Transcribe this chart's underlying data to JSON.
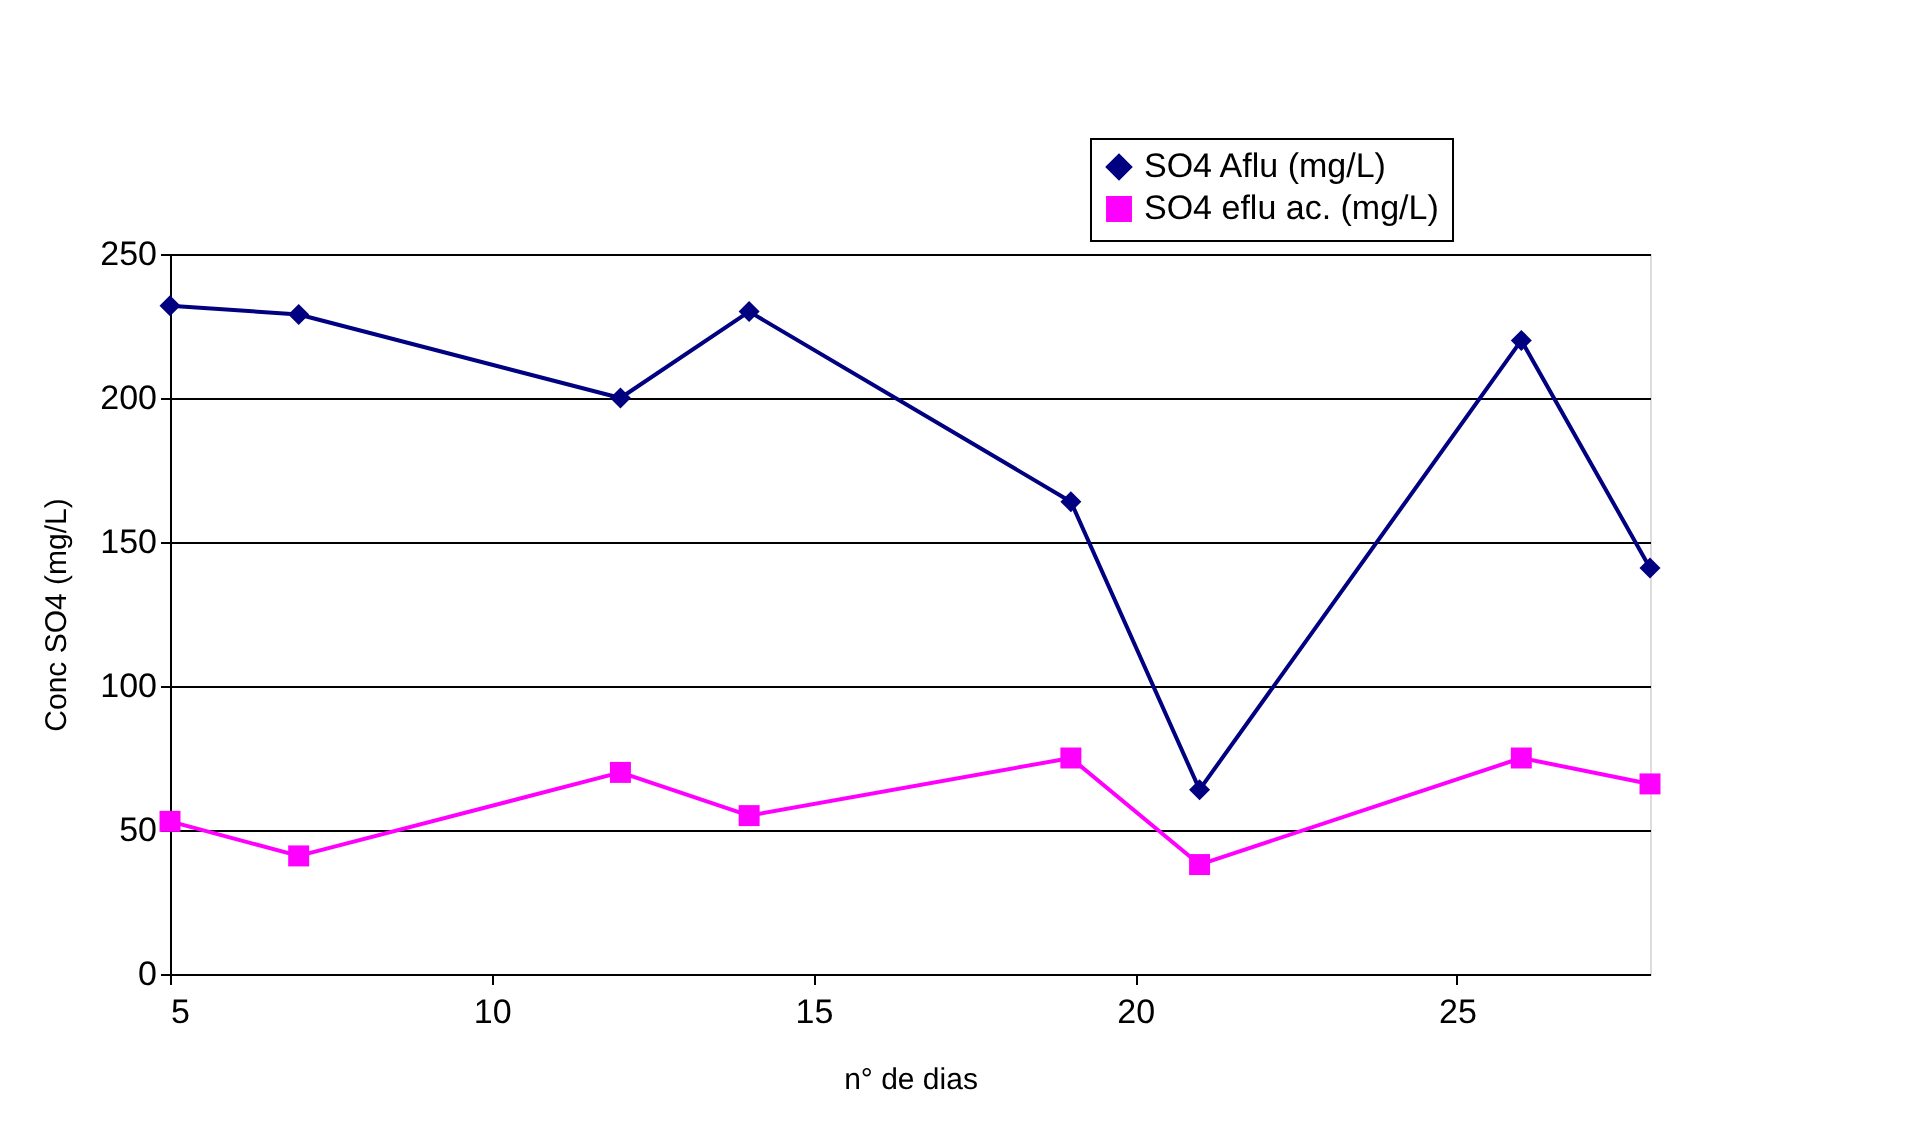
{
  "chart_data": {
    "type": "line",
    "xlabel": "n° de dias",
    "ylabel": "Conc SO4 (mg/L)",
    "x": [
      5,
      7,
      12,
      14,
      19,
      21,
      26,
      28
    ],
    "series": [
      {
        "name": "SO4 Aflu (mg/L)",
        "color": "#000080",
        "marker": "diamond",
        "values": [
          232,
          229,
          200,
          230,
          164,
          64,
          220,
          141
        ]
      },
      {
        "name": "SO4 eflu ac. (mg/L)",
        "color": "#ff00ff",
        "marker": "square",
        "values": [
          53,
          41,
          70,
          55,
          75,
          38,
          75,
          66
        ]
      }
    ],
    "xlim": [
      5,
      28
    ],
    "xticks": [
      5,
      10,
      15,
      20,
      25
    ],
    "ylim": [
      0,
      250
    ],
    "yticks": [
      0,
      50,
      100,
      150,
      200,
      250
    ],
    "grid": "y",
    "legend": "top right",
    "line_style": "solid"
  }
}
